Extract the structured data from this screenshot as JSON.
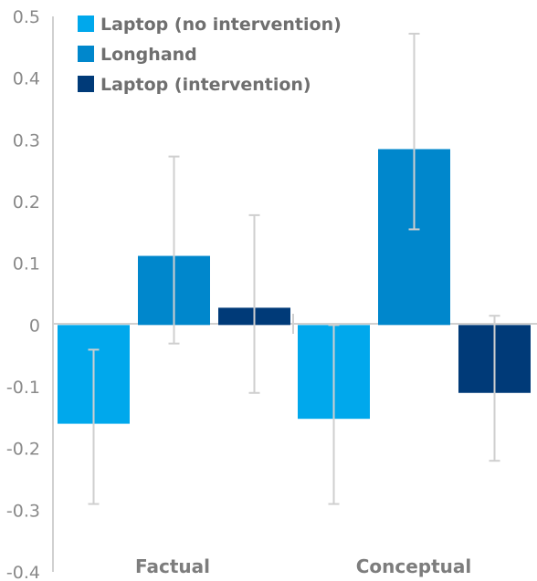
{
  "chart_data": {
    "type": "bar",
    "title": "",
    "xlabel": "",
    "ylabel": "",
    "categories": [
      "Factual",
      "Conceptual"
    ],
    "series": [
      {
        "name": "Laptop (no intervention)",
        "color": "#00a8ec",
        "values": [
          -0.16,
          -0.152
        ],
        "error_low": [
          -0.29,
          -0.29
        ],
        "error_high": [
          -0.04,
          0.0
        ]
      },
      {
        "name": "Longhand",
        "color": "#0087cc",
        "values": [
          0.112,
          0.285
        ],
        "error_low": [
          -0.03,
          0.155
        ],
        "error_high": [
          0.273,
          0.472
        ]
      },
      {
        "name": "Laptop (intervention)",
        "color": "#003a78",
        "values": [
          0.028,
          -0.11
        ],
        "error_low": [
          -0.11,
          -0.22
        ],
        "error_high": [
          0.178,
          0.015
        ]
      }
    ],
    "ylim": [
      -0.4,
      0.5
    ],
    "yticks": [
      "-0.4",
      "-0.3",
      "-0.2",
      "-0.1",
      "0",
      "0.1",
      "0.2",
      "0.3",
      "0.4",
      "0.5"
    ],
    "grid": false,
    "legend": "top-left"
  }
}
